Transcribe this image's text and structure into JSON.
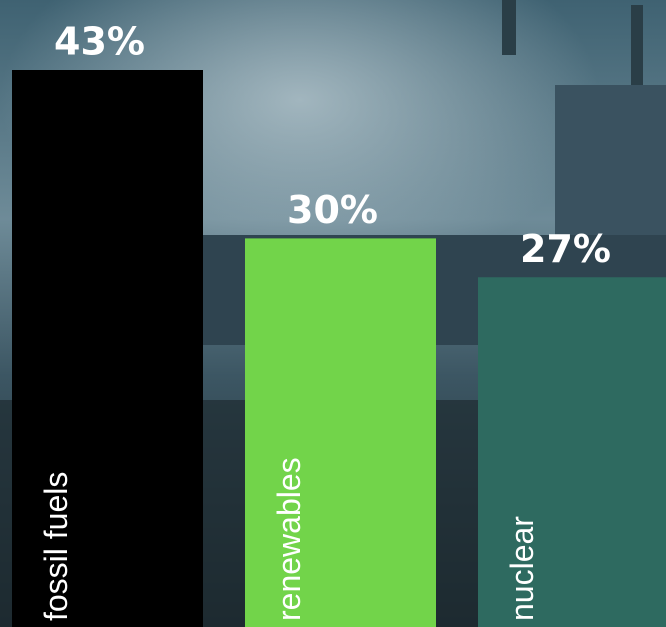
{
  "chart_data": {
    "type": "bar",
    "categories": [
      "fossil fuels",
      "renewables",
      "nuclear"
    ],
    "values": [
      43,
      30,
      27
    ],
    "value_labels": [
      "43%",
      "30%",
      "27%"
    ],
    "colors": [
      "#000000",
      "#72d44a",
      "#2e6a60"
    ]
  }
}
